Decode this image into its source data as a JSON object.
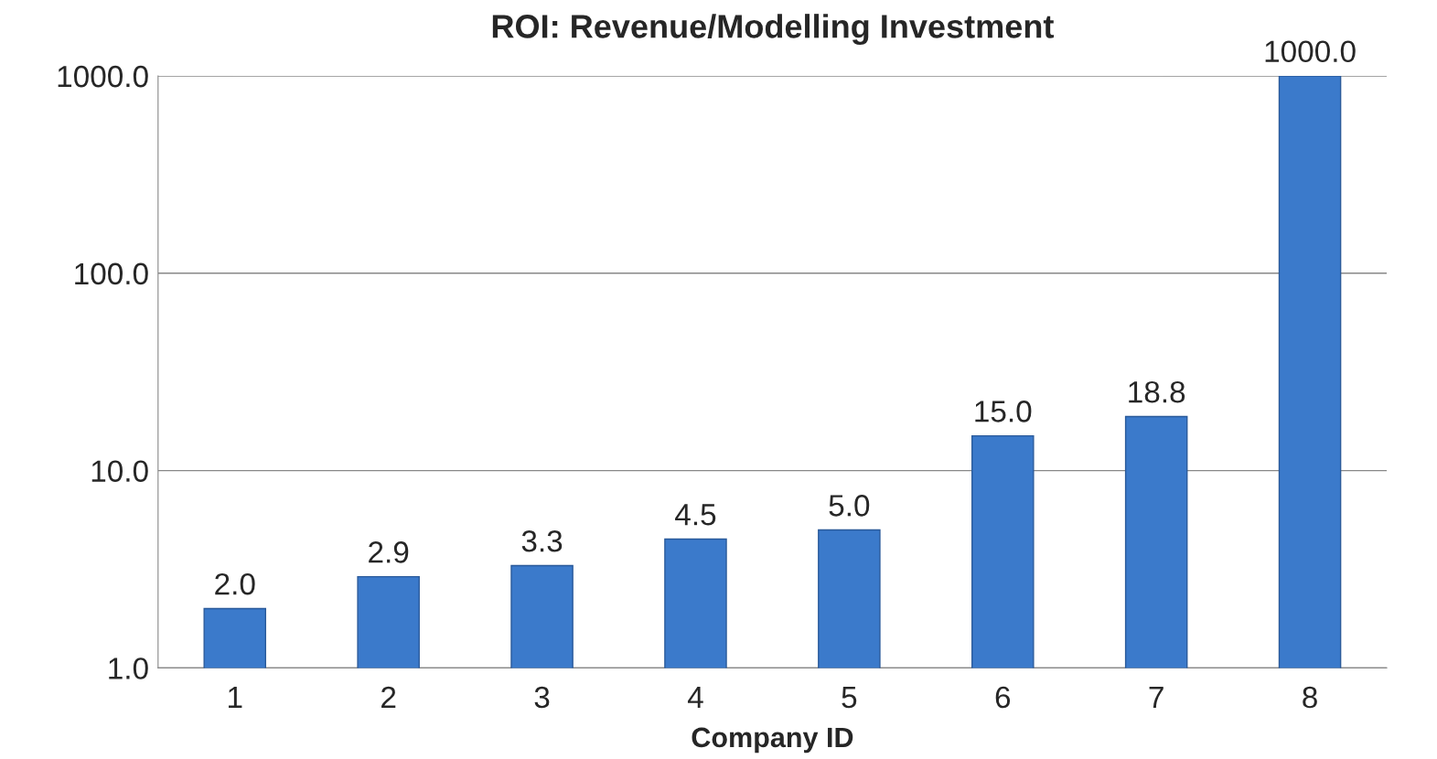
{
  "chart_data": {
    "type": "bar",
    "title": "ROI: Revenue/Modelling Investment",
    "xlabel": "Company ID",
    "categories": [
      "1",
      "2",
      "3",
      "4",
      "5",
      "6",
      "7",
      "8"
    ],
    "values": [
      2.0,
      2.9,
      3.3,
      4.5,
      5.0,
      15.0,
      18.8,
      1000.0
    ],
    "value_labels": [
      "2.0",
      "2.9",
      "3.3",
      "4.5",
      "5.0",
      "15.0",
      "18.8",
      "1000.0"
    ],
    "color": "#3b7acb",
    "log": true,
    "ylim": [
      1,
      1000
    ],
    "yticks": [
      {
        "value": 1,
        "label": "1.0"
      },
      {
        "value": 10,
        "label": "10.0"
      },
      {
        "value": 100,
        "label": "100.0"
      },
      {
        "value": 1000,
        "label": "1000.0"
      }
    ],
    "grid": "y",
    "legend": false
  }
}
